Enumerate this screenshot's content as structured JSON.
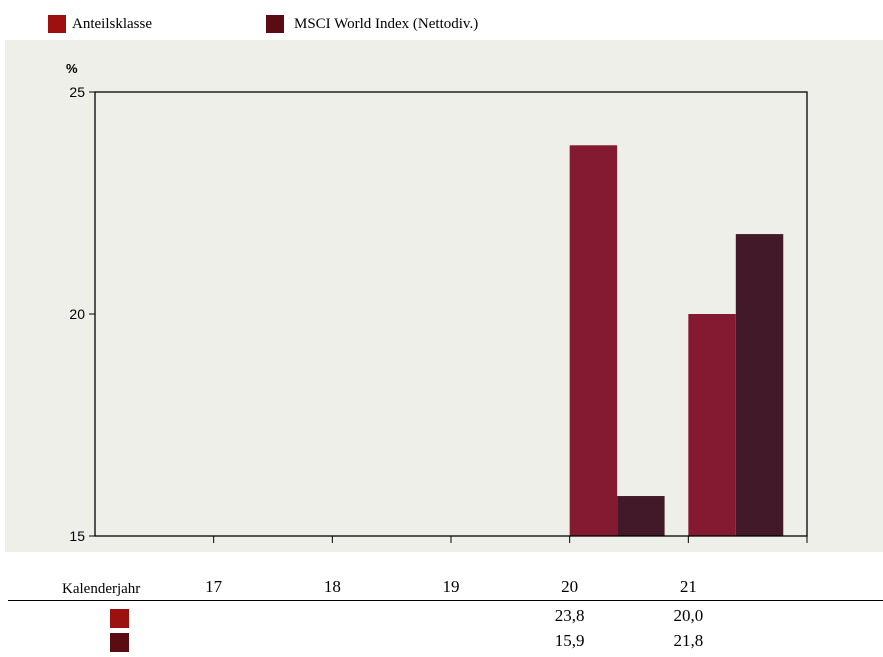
{
  "colors": {
    "anteilsklasse": "#841a32",
    "msci": "#421929",
    "legend_anteilsklasse": "#9c1010",
    "legend_msci": "#5a0c12",
    "plot_bg": "#efefea"
  },
  "chart_data": {
    "type": "bar",
    "ylabel": "%",
    "xlabel": "Kalenderjahr",
    "ylim": [
      15,
      25
    ],
    "yticks": [
      15,
      20,
      25
    ],
    "categories": [
      "17",
      "18",
      "19",
      "20",
      "21"
    ],
    "series": [
      {
        "name": "Anteilsklasse",
        "values": [
          null,
          null,
          null,
          23.8,
          20.0
        ],
        "labels": [
          "",
          "",
          "",
          "23,8",
          "20,0"
        ]
      },
      {
        "name": "MSCI World Index (Nettodiv.)",
        "values": [
          null,
          null,
          null,
          15.9,
          21.8
        ],
        "labels": [
          "",
          "",
          "",
          "15,9",
          "21,8"
        ]
      }
    ],
    "legend_position": "top-left",
    "grid": false
  }
}
